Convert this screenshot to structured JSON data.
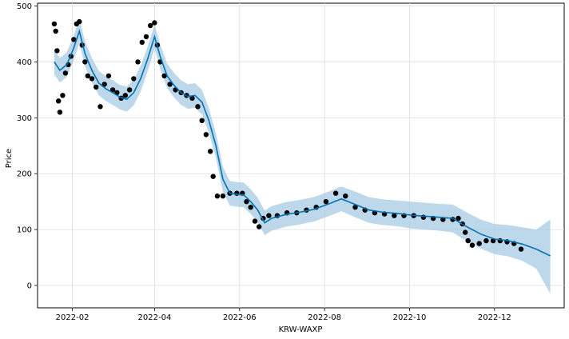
{
  "chart_data": {
    "type": "line",
    "xlabel": "KRW-WAXP",
    "ylabel": "Price",
    "ylim": [
      -40,
      505
    ],
    "xlim": [
      "2022-01-07",
      "2023-01-20"
    ],
    "grid": true,
    "yticks": [
      0,
      100,
      200,
      300,
      400,
      500
    ],
    "xticks": [
      {
        "date": "2022-02-01",
        "label": "2022-02"
      },
      {
        "date": "2022-04-01",
        "label": "2022-04"
      },
      {
        "date": "2022-06-01",
        "label": "2022-06"
      },
      {
        "date": "2022-08-01",
        "label": "2022-08"
      },
      {
        "date": "2022-10-01",
        "label": "2022-10"
      },
      {
        "date": "2022-12-01",
        "label": "2022-12"
      }
    ],
    "colors": {
      "forecast": "#0072B2",
      "band": "#a6cbe3",
      "points": "#000000"
    },
    "series": [
      {
        "role": "observed",
        "x": [
          "2022-01-19",
          "2022-01-20",
          "2022-01-21",
          "2022-01-22",
          "2022-01-23",
          "2022-01-25",
          "2022-01-27",
          "2022-01-29",
          "2022-01-31",
          "2022-02-02",
          "2022-02-04",
          "2022-02-06",
          "2022-02-08",
          "2022-02-10",
          "2022-02-12",
          "2022-02-15",
          "2022-02-18",
          "2022-02-21",
          "2022-02-24",
          "2022-02-27",
          "2022-03-02",
          "2022-03-05",
          "2022-03-08",
          "2022-03-11",
          "2022-03-14",
          "2022-03-17",
          "2022-03-20",
          "2022-03-23",
          "2022-03-26",
          "2022-03-29",
          "2022-04-01",
          "2022-04-03",
          "2022-04-05",
          "2022-04-08",
          "2022-04-12",
          "2022-04-16",
          "2022-04-20",
          "2022-04-24",
          "2022-04-28",
          "2022-05-02",
          "2022-05-05",
          "2022-05-08",
          "2022-05-11",
          "2022-05-13",
          "2022-05-16",
          "2022-05-20",
          "2022-05-25",
          "2022-05-30",
          "2022-06-03",
          "2022-06-06",
          "2022-06-09",
          "2022-06-12",
          "2022-06-15",
          "2022-06-18",
          "2022-06-22",
          "2022-06-28",
          "2022-07-05",
          "2022-07-12",
          "2022-07-19",
          "2022-07-26",
          "2022-08-02",
          "2022-08-09",
          "2022-08-16",
          "2022-08-23",
          "2022-08-30",
          "2022-09-06",
          "2022-09-13",
          "2022-09-20",
          "2022-09-27",
          "2022-10-04",
          "2022-10-11",
          "2022-10-18",
          "2022-10-25",
          "2022-11-01",
          "2022-11-05",
          "2022-11-08",
          "2022-11-10",
          "2022-11-12",
          "2022-11-15",
          "2022-11-20",
          "2022-11-25",
          "2022-11-30",
          "2022-12-05",
          "2022-12-10",
          "2022-12-15",
          "2022-12-20"
        ],
        "y": [
          468,
          455,
          420,
          330,
          310,
          340,
          380,
          395,
          410,
          440,
          468,
          472,
          430,
          400,
          375,
          370,
          355,
          320,
          360,
          375,
          350,
          345,
          335,
          340,
          350,
          370,
          400,
          435,
          445,
          465,
          470,
          430,
          400,
          375,
          360,
          350,
          345,
          340,
          335,
          320,
          295,
          270,
          240,
          195,
          160,
          160,
          165,
          165,
          165,
          150,
          140,
          115,
          105,
          120,
          125,
          125,
          130,
          130,
          135,
          140,
          150,
          165,
          160,
          140,
          135,
          130,
          128,
          125,
          125,
          125,
          122,
          120,
          118,
          118,
          120,
          110,
          95,
          80,
          72,
          75,
          80,
          80,
          80,
          78,
          75,
          65
        ]
      },
      {
        "role": "forecast",
        "x": [
          "2022-01-19",
          "2022-01-23",
          "2022-01-28",
          "2022-02-02",
          "2022-02-06",
          "2022-02-10",
          "2022-02-15",
          "2022-02-20",
          "2022-02-25",
          "2022-03-02",
          "2022-03-07",
          "2022-03-12",
          "2022-03-17",
          "2022-03-22",
          "2022-03-27",
          "2022-04-01",
          "2022-04-05",
          "2022-04-10",
          "2022-04-15",
          "2022-04-20",
          "2022-04-25",
          "2022-04-30",
          "2022-05-05",
          "2022-05-10",
          "2022-05-15",
          "2022-05-20",
          "2022-05-25",
          "2022-05-30",
          "2022-06-04",
          "2022-06-09",
          "2022-06-14",
          "2022-06-19",
          "2022-06-24",
          "2022-07-04",
          "2022-07-14",
          "2022-07-24",
          "2022-08-03",
          "2022-08-13",
          "2022-08-23",
          "2022-09-02",
          "2022-09-12",
          "2022-09-22",
          "2022-10-02",
          "2022-10-12",
          "2022-10-22",
          "2022-11-01",
          "2022-11-11",
          "2022-11-21",
          "2022-12-01",
          "2022-12-11",
          "2022-12-21",
          "2022-12-31",
          "2023-01-10"
        ],
        "y": [
          400,
          385,
          395,
          425,
          455,
          415,
          385,
          362,
          352,
          345,
          337,
          333,
          345,
          370,
          405,
          445,
          410,
          375,
          358,
          345,
          338,
          340,
          328,
          295,
          250,
          190,
          165,
          163,
          162,
          150,
          135,
          112,
          120,
          127,
          131,
          136,
          145,
          155,
          145,
          135,
          131,
          129,
          126,
          124,
          122,
          120,
          105,
          92,
          83,
          80,
          74,
          65,
          53
        ]
      },
      {
        "role": "upper",
        "x": [
          "2022-01-19",
          "2022-01-23",
          "2022-01-28",
          "2022-02-02",
          "2022-02-06",
          "2022-02-10",
          "2022-02-15",
          "2022-02-20",
          "2022-02-25",
          "2022-03-02",
          "2022-03-07",
          "2022-03-12",
          "2022-03-17",
          "2022-03-22",
          "2022-03-27",
          "2022-04-01",
          "2022-04-05",
          "2022-04-10",
          "2022-04-15",
          "2022-04-20",
          "2022-04-25",
          "2022-04-30",
          "2022-05-05",
          "2022-05-10",
          "2022-05-15",
          "2022-05-20",
          "2022-05-25",
          "2022-05-30",
          "2022-06-04",
          "2022-06-09",
          "2022-06-14",
          "2022-06-19",
          "2022-06-24",
          "2022-07-04",
          "2022-07-14",
          "2022-07-24",
          "2022-08-03",
          "2022-08-13",
          "2022-08-23",
          "2022-09-02",
          "2022-09-12",
          "2022-09-22",
          "2022-10-02",
          "2022-10-12",
          "2022-10-22",
          "2022-11-01",
          "2022-11-11",
          "2022-11-21",
          "2022-12-01",
          "2022-12-11",
          "2022-12-21",
          "2022-12-31",
          "2023-01-10"
        ],
        "y": [
          422,
          407,
          417,
          447,
          477,
          437,
          407,
          384,
          374,
          367,
          359,
          356,
          368,
          393,
          427,
          467,
          432,
          397,
          380,
          367,
          360,
          362,
          350,
          317,
          272,
          212,
          187,
          185,
          184,
          172,
          157,
          134,
          142,
          149,
          153,
          158,
          167,
          177,
          168,
          158,
          154,
          152,
          150,
          148,
          146,
          145,
          131,
          118,
          110,
          108,
          104,
          100,
          118
        ]
      },
      {
        "role": "lower",
        "x": [
          "2022-01-19",
          "2022-01-23",
          "2022-01-28",
          "2022-02-02",
          "2022-02-06",
          "2022-02-10",
          "2022-02-15",
          "2022-02-20",
          "2022-02-25",
          "2022-03-02",
          "2022-03-07",
          "2022-03-12",
          "2022-03-17",
          "2022-03-22",
          "2022-03-27",
          "2022-04-01",
          "2022-04-05",
          "2022-04-10",
          "2022-04-15",
          "2022-04-20",
          "2022-04-25",
          "2022-04-30",
          "2022-05-05",
          "2022-05-10",
          "2022-05-15",
          "2022-05-20",
          "2022-05-25",
          "2022-05-30",
          "2022-06-04",
          "2022-06-09",
          "2022-06-14",
          "2022-06-19",
          "2022-06-24",
          "2022-07-04",
          "2022-07-14",
          "2022-07-24",
          "2022-08-03",
          "2022-08-13",
          "2022-08-23",
          "2022-09-02",
          "2022-09-12",
          "2022-09-22",
          "2022-10-02",
          "2022-10-12",
          "2022-10-22",
          "2022-11-01",
          "2022-11-11",
          "2022-11-21",
          "2022-12-01",
          "2022-12-11",
          "2022-12-21",
          "2022-12-31",
          "2023-01-10"
        ],
        "y": [
          378,
          363,
          373,
          403,
          433,
          393,
          363,
          340,
          330,
          323,
          315,
          311,
          322,
          347,
          383,
          423,
          388,
          353,
          336,
          323,
          316,
          318,
          306,
          273,
          228,
          168,
          143,
          141,
          140,
          128,
          113,
          90,
          98,
          105,
          109,
          114,
          123,
          133,
          122,
          112,
          108,
          106,
          102,
          100,
          98,
          95,
          79,
          66,
          56,
          52,
          44,
          30,
          -15
        ]
      }
    ]
  }
}
